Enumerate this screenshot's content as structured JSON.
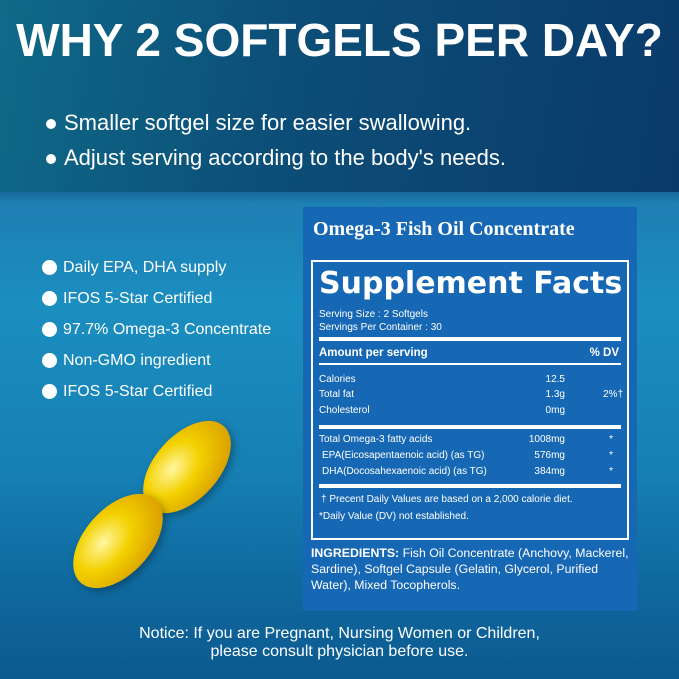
{
  "title": "WHY 2 SOFTGELS PER DAY?",
  "header_bullets": [
    "Smaller softgel size for easier swallowing.",
    "Adjust serving according to the body's needs."
  ],
  "features": [
    "Daily EPA, DHA supply",
    "IFOS 5-Star Certified",
    "97.7% Omega-3 Concentrate",
    "Non-GMO ingredient",
    "IFOS 5-Star Certified"
  ],
  "panel": {
    "product": "Omega-3 Fish Oil Concentrate",
    "heading": "Supplement Facts",
    "serving_size": "Serving Size : 2 Softgels",
    "servings_per_container": "Servings Per Container : 30",
    "amount_header": "Amount per serving",
    "dv_header": "% DV",
    "rows": [
      {
        "name": "Calories",
        "amount": "12.5",
        "dv": ""
      },
      {
        "name": "Total fat",
        "amount": "1.3g",
        "dv": "2%†"
      },
      {
        "name": "Cholesterol",
        "amount": "0mg",
        "dv": ""
      },
      {
        "name": "Total Omega-3 fatty acids",
        "amount": "1008mg",
        "dv": "*"
      },
      {
        "name": "EPA(Eicosapentaenoic acid) (as TG)",
        "amount": "576mg",
        "dv": "*"
      },
      {
        "name": "DHA(Docosahexaenoic acid) (as TG)",
        "amount": "384mg",
        "dv": "*"
      }
    ],
    "footnote1": "† Precent Daily Values are based on a 2,000 calorie diet.",
    "footnote2": "*Daily Value (DV) not established.",
    "ingredients_label": "INGREDIENTS:",
    "ingredients": "Fish Oil Concentrate (Anchovy, Mackerel, Sardine), Softgel Capsule (Gelatin, Glycerol, Purified Water), Mixed Tocopherols."
  },
  "notice": [
    "Notice: If you are Pregnant, Nursing Women or Children,",
    "please consult physician before use."
  ]
}
